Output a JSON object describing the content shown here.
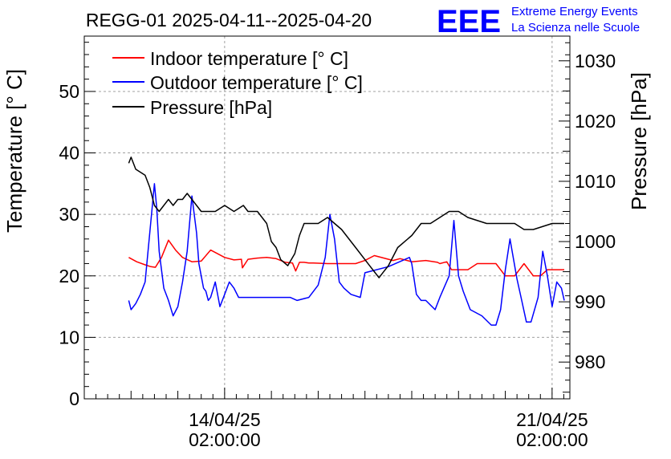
{
  "chart_data": {
    "type": "line",
    "title": "REGG-01 2025-04-11--2025-04-20",
    "ylabel_left": "Temperature [° C]",
    "ylabel_right": "Pressure [hPa]",
    "ylim_left": [
      0,
      59
    ],
    "ylim_right": [
      973.9,
      1034.1
    ],
    "x_range": [
      0,
      10.38
    ],
    "x_ticks": [
      {
        "t": 3.0,
        "date": "14/04/25",
        "time": "02:00:00"
      },
      {
        "t": 10.0,
        "date": "21/04/25",
        "time": "02:00:00"
      }
    ],
    "y_ticks_left": [
      0,
      10,
      20,
      30,
      40,
      50
    ],
    "y_ticks_right": [
      980,
      990,
      1000,
      1010,
      1020,
      1030
    ],
    "grid": true,
    "legend_position": "top-left",
    "series": [
      {
        "name": "Indoor temperature [° C]",
        "axis": "left",
        "color": "#ff0000",
        "x": [
          0.95,
          1.12,
          1.3,
          1.42,
          1.52,
          1.65,
          1.8,
          1.95,
          2.1,
          2.3,
          2.5,
          2.7,
          3.0,
          3.2,
          3.36,
          3.38,
          3.5,
          3.7,
          3.9,
          4.1,
          4.3,
          4.45,
          4.52,
          4.6,
          4.7,
          4.8,
          4.9,
          5.2,
          5.5,
          5.8,
          6.0,
          6.2,
          6.6,
          6.75,
          6.9,
          7.0,
          7.3,
          7.55,
          7.6,
          7.75,
          7.85,
          7.9,
          8.2,
          8.4,
          8.8,
          9.0,
          9.2,
          9.4,
          9.6,
          9.75,
          9.9,
          10.26
        ],
        "y": [
          23,
          22.3,
          21.8,
          21.5,
          21.4,
          23,
          25.8,
          24.2,
          23,
          22.3,
          22.4,
          24.2,
          23,
          22.6,
          22.7,
          21.3,
          22.7,
          22.9,
          23,
          22.8,
          22.2,
          22.1,
          20.8,
          22.2,
          22.2,
          22.1,
          22.1,
          22,
          22,
          22,
          22.5,
          23.3,
          22.5,
          22.8,
          22.5,
          22.3,
          22.5,
          22.2,
          22,
          22.3,
          21,
          21,
          21,
          22,
          22,
          20,
          20,
          22,
          20,
          20,
          21,
          21
        ]
      },
      {
        "name": "Outdoor temperature [° C]",
        "axis": "left",
        "color": "#0000ff",
        "x": [
          0.95,
          1.0,
          1.1,
          1.2,
          1.3,
          1.4,
          1.5,
          1.55,
          1.6,
          1.7,
          1.8,
          1.9,
          2.0,
          2.1,
          2.2,
          2.3,
          2.4,
          2.45,
          2.5,
          2.55,
          2.6,
          2.65,
          2.7,
          2.8,
          2.9,
          3.0,
          3.1,
          3.2,
          3.3,
          3.4,
          3.5,
          3.6,
          3.8,
          4.0,
          4.2,
          4.4,
          4.55,
          4.8,
          5.0,
          5.15,
          5.25,
          5.35,
          5.45,
          5.55,
          5.7,
          5.9,
          6.0,
          6.5,
          6.95,
          7.0,
          7.1,
          7.2,
          7.3,
          7.5,
          7.6,
          7.8,
          7.9,
          8.0,
          8.1,
          8.25,
          8.5,
          8.7,
          8.8,
          8.9,
          9.0,
          9.1,
          9.25,
          9.35,
          9.45,
          9.55,
          9.7,
          9.8,
          9.9,
          10.0,
          10.1,
          10.2,
          10.26
        ],
        "y": [
          16,
          14.5,
          15.5,
          17,
          19,
          27,
          35,
          31,
          24,
          18,
          16,
          13.5,
          15,
          19,
          24,
          33,
          27,
          22,
          20,
          18,
          17.5,
          16,
          16.5,
          19,
          15,
          17,
          19,
          18,
          16.5,
          16.5,
          16.5,
          16.5,
          16.5,
          16.5,
          16.5,
          16.5,
          16,
          16.5,
          18.5,
          23,
          30,
          26,
          19,
          18,
          17,
          16.5,
          20.5,
          21.5,
          23,
          22,
          17,
          16,
          16,
          14.5,
          16.5,
          20,
          29,
          20,
          17.5,
          14.5,
          13.5,
          12,
          12,
          14.5,
          21,
          26,
          19.5,
          16,
          12.5,
          12.5,
          16.5,
          24,
          20,
          15,
          19,
          18,
          16
        ]
      },
      {
        "name": "Pressure [hPa]",
        "axis": "right",
        "color": "#000000",
        "x": [
          0.95,
          1.0,
          1.1,
          1.3,
          1.4,
          1.5,
          1.6,
          1.7,
          1.8,
          1.9,
          2.0,
          2.1,
          2.2,
          2.3,
          2.4,
          2.5,
          2.6,
          2.8,
          3.0,
          3.2,
          3.4,
          3.5,
          3.7,
          3.8,
          3.9,
          4.0,
          4.1,
          4.2,
          4.35,
          4.5,
          4.6,
          4.7,
          4.8,
          5.0,
          5.2,
          5.5,
          5.8,
          6.0,
          6.1,
          6.2,
          6.3,
          6.4,
          6.5,
          6.7,
          7.0,
          7.2,
          7.4,
          7.6,
          7.8,
          8.0,
          8.2,
          8.6,
          8.8,
          9.0,
          9.2,
          9.4,
          9.6,
          10.0,
          10.2,
          10.26
        ],
        "y": [
          1013,
          1014,
          1012,
          1011,
          1009,
          1006,
          1005,
          1006,
          1007,
          1006,
          1007,
          1007,
          1008,
          1007,
          1006,
          1005,
          1005,
          1005,
          1006,
          1005,
          1006,
          1005,
          1005,
          1004,
          1003,
          1000,
          999,
          997,
          996,
          998,
          1001,
          1003,
          1003,
          1003,
          1004,
          1002,
          999,
          997,
          996,
          995,
          994,
          995,
          996,
          999,
          1001,
          1003,
          1003,
          1004,
          1005,
          1005,
          1004,
          1003,
          1003,
          1003,
          1003,
          1002,
          1002,
          1003,
          1003,
          1003
        ]
      }
    ]
  },
  "logo": {
    "text": "EEE",
    "line1": "Extreme Energy Events",
    "line2": "La Scienza nelle Scuole",
    "color": "#0000ff"
  }
}
